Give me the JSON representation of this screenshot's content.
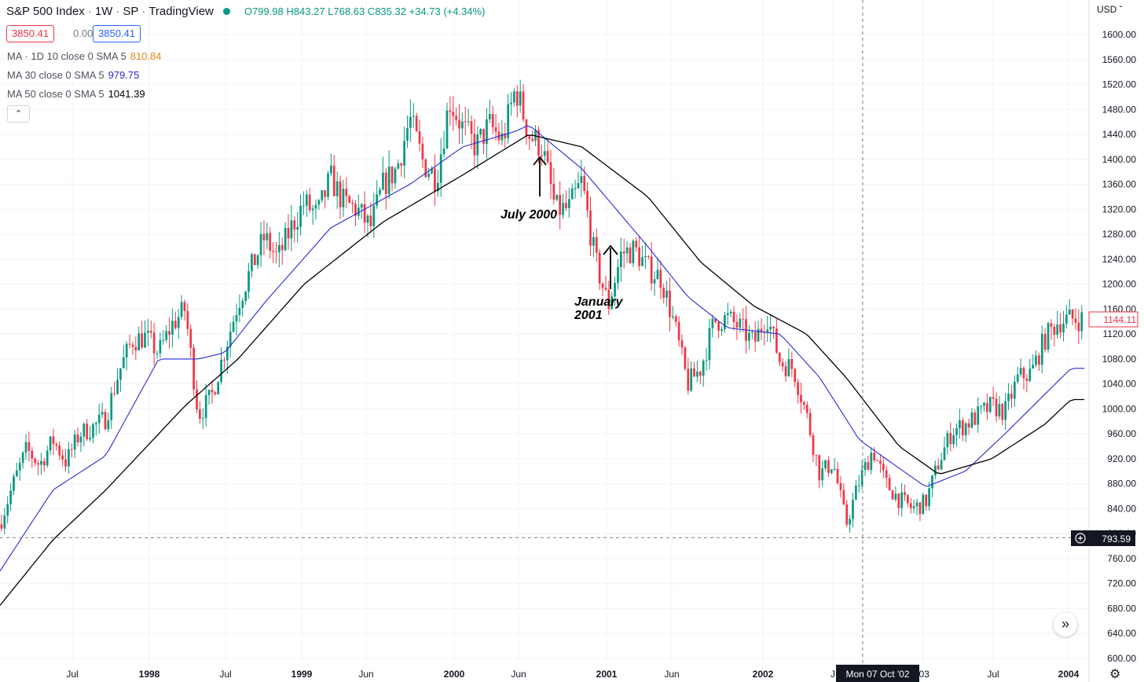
{
  "header": {
    "symbol": "S&P 500 Index",
    "interval": "1W",
    "exchange": "SP",
    "source": "TradingView",
    "status_color": "#089981",
    "ohlc": {
      "o_label": "O",
      "o": "799.98",
      "h_label": "H",
      "h": "843.27",
      "l_label": "L",
      "l": "768.63",
      "c_label": "C",
      "c": "835.32",
      "change": "+34.73 (+4.34%)"
    }
  },
  "price_boxes": {
    "bid": "3850.41",
    "spread": "0.00",
    "ask": "3850.41"
  },
  "indicators": [
    {
      "label": "MA · 1D 10 close 0 SMA 5",
      "value": "810.84",
      "color": "#e8861b"
    },
    {
      "label": "MA 30 close 0 SMA 5",
      "value": "979.75",
      "color": "#2a2ad6"
    },
    {
      "label": "MA 50 close 0 SMA 5",
      "value": "1041.39",
      "color": "#000000"
    }
  ],
  "collapse_icon": "chevron-up-icon",
  "annotations": [
    {
      "text": "July 2000"
    },
    {
      "text": "January\n2001"
    }
  ],
  "crosshair": {
    "price_label": "793.59",
    "date_label": "Mon 07 Oct '02"
  },
  "last_price_label": "1144.11",
  "currency": "USD",
  "colors": {
    "up": "#089981",
    "down": "#f23645",
    "ma30": "#2a2ad6",
    "ma50": "#000000"
  },
  "chart_data": {
    "type": "candlestick",
    "title": "S&P 500 Index · 1W · SP",
    "y_axis": {
      "ticks": [
        600,
        640,
        680,
        720,
        760,
        800,
        840,
        880,
        920,
        960,
        1000,
        1040,
        1080,
        1120,
        1160,
        1200,
        1240,
        1280,
        1320,
        1360,
        1400,
        1440,
        1480,
        1520,
        1560,
        1600
      ],
      "ylim": [
        598,
        1618
      ]
    },
    "x_axis": {
      "labels": [
        "Jul",
        "1998",
        "Jul",
        "1999",
        "Jun",
        "2000",
        "Jun",
        "2001",
        "Jun",
        "2002",
        "J",
        "'03",
        "Jul",
        "2004"
      ]
    },
    "price_path": [
      [
        "1997-05",
        815
      ],
      [
        "1997-06",
        880
      ],
      [
        "1997-07",
        935
      ],
      [
        "1997-08",
        910
      ],
      [
        "1997-09",
        950
      ],
      [
        "1997-10",
        915
      ],
      [
        "1997-11",
        960
      ],
      [
        "1997-12",
        970
      ],
      [
        "1998-01",
        985
      ],
      [
        "1998-02",
        1060
      ],
      [
        "1998-03",
        1110
      ],
      [
        "1998-04",
        1115
      ],
      [
        "1998-05",
        1090
      ],
      [
        "1998-06",
        1135
      ],
      [
        "1998-07",
        1160
      ],
      [
        "1998-08",
        990
      ],
      [
        "1998-09",
        1020
      ],
      [
        "1998-10",
        1095
      ],
      [
        "1998-11",
        1170
      ],
      [
        "1998-12",
        1225
      ],
      [
        "1999-01",
        1275
      ],
      [
        "1999-02",
        1240
      ],
      [
        "1999-03",
        1290
      ],
      [
        "1999-04",
        1330
      ],
      [
        "1999-05",
        1310
      ],
      [
        "1999-06",
        1370
      ],
      [
        "1999-07",
        1330
      ],
      [
        "1999-08",
        1320
      ],
      [
        "1999-09",
        1290
      ],
      [
        "1999-10",
        1360
      ],
      [
        "1999-11",
        1385
      ],
      [
        "1999-12",
        1465
      ],
      [
        "2000-01",
        1395
      ],
      [
        "2000-02",
        1370
      ],
      [
        "2000-03",
        1495
      ],
      [
        "2000-04",
        1450
      ],
      [
        "2000-05",
        1420
      ],
      [
        "2000-06",
        1455
      ],
      [
        "2000-07",
        1430
      ],
      [
        "2000-08",
        1515
      ],
      [
        "2000-09",
        1440
      ],
      [
        "2000-10",
        1420
      ],
      [
        "2000-11",
        1320
      ],
      [
        "2000-12",
        1320
      ],
      [
        "2001-01",
        1365
      ],
      [
        "2001-02",
        1240
      ],
      [
        "2001-03",
        1165
      ],
      [
        "2001-04",
        1250
      ],
      [
        "2001-05",
        1255
      ],
      [
        "2001-06",
        1225
      ],
      [
        "2001-07",
        1210
      ],
      [
        "2001-08",
        1135
      ],
      [
        "2001-09",
        1040
      ],
      [
        "2001-10",
        1065
      ],
      [
        "2001-11",
        1140
      ],
      [
        "2001-12",
        1145
      ],
      [
        "2002-01",
        1130
      ],
      [
        "2002-02",
        1105
      ],
      [
        "2002-03",
        1150
      ],
      [
        "2002-04",
        1075
      ],
      [
        "2002-05",
        1065
      ],
      [
        "2002-06",
        990
      ],
      [
        "2002-07",
        895
      ],
      [
        "2002-08",
        915
      ],
      [
        "2002-09",
        815
      ],
      [
        "2002-10",
        885
      ],
      [
        "2002-11",
        935
      ],
      [
        "2002-12",
        880
      ],
      [
        "2003-01",
        855
      ],
      [
        "2003-02",
        840
      ],
      [
        "2003-03",
        850
      ],
      [
        "2003-04",
        915
      ],
      [
        "2003-05",
        965
      ],
      [
        "2003-06",
        975
      ],
      [
        "2003-07",
        990
      ],
      [
        "2003-08",
        1005
      ],
      [
        "2003-09",
        995
      ],
      [
        "2003-10",
        1050
      ],
      [
        "2003-11",
        1058
      ],
      [
        "2003-12",
        1112
      ],
      [
        "2004-01",
        1140
      ],
      [
        "2004-02",
        1144
      ]
    ],
    "ma30": [
      [
        "1997-05",
        740
      ],
      [
        "1997-09",
        870
      ],
      [
        "1998-01",
        925
      ],
      [
        "1998-05",
        1080
      ],
      [
        "1998-08",
        1080
      ],
      [
        "1998-10",
        1090
      ],
      [
        "1999-01",
        1170
      ],
      [
        "1999-06",
        1290
      ],
      [
        "1999-12",
        1360
      ],
      [
        "2000-04",
        1420
      ],
      [
        "2000-08",
        1445
      ],
      [
        "2000-09",
        1455
      ],
      [
        "2001-01",
        1385
      ],
      [
        "2001-06",
        1260
      ],
      [
        "2001-09",
        1180
      ],
      [
        "2001-12",
        1130
      ],
      [
        "2002-04",
        1120
      ],
      [
        "2002-07",
        1050
      ],
      [
        "2002-10",
        950
      ],
      [
        "2003-01",
        905
      ],
      [
        "2003-03",
        875
      ],
      [
        "2003-06",
        900
      ],
      [
        "2003-09",
        960
      ],
      [
        "2004-02",
        1065
      ]
    ],
    "ma50": [
      [
        "1997-05",
        685
      ],
      [
        "1997-09",
        790
      ],
      [
        "1998-01",
        870
      ],
      [
        "1998-07",
        1005
      ],
      [
        "1998-11",
        1080
      ],
      [
        "1999-04",
        1200
      ],
      [
        "1999-10",
        1300
      ],
      [
        "2000-04",
        1375
      ],
      [
        "2000-09",
        1440
      ],
      [
        "2001-01",
        1420
      ],
      [
        "2001-06",
        1340
      ],
      [
        "2001-10",
        1235
      ],
      [
        "2002-02",
        1165
      ],
      [
        "2002-06",
        1120
      ],
      [
        "2002-09",
        1050
      ],
      [
        "2003-01",
        940
      ],
      [
        "2003-04",
        895
      ],
      [
        "2003-08",
        920
      ],
      [
        "2003-12",
        975
      ],
      [
        "2004-02",
        1015
      ]
    ]
  }
}
